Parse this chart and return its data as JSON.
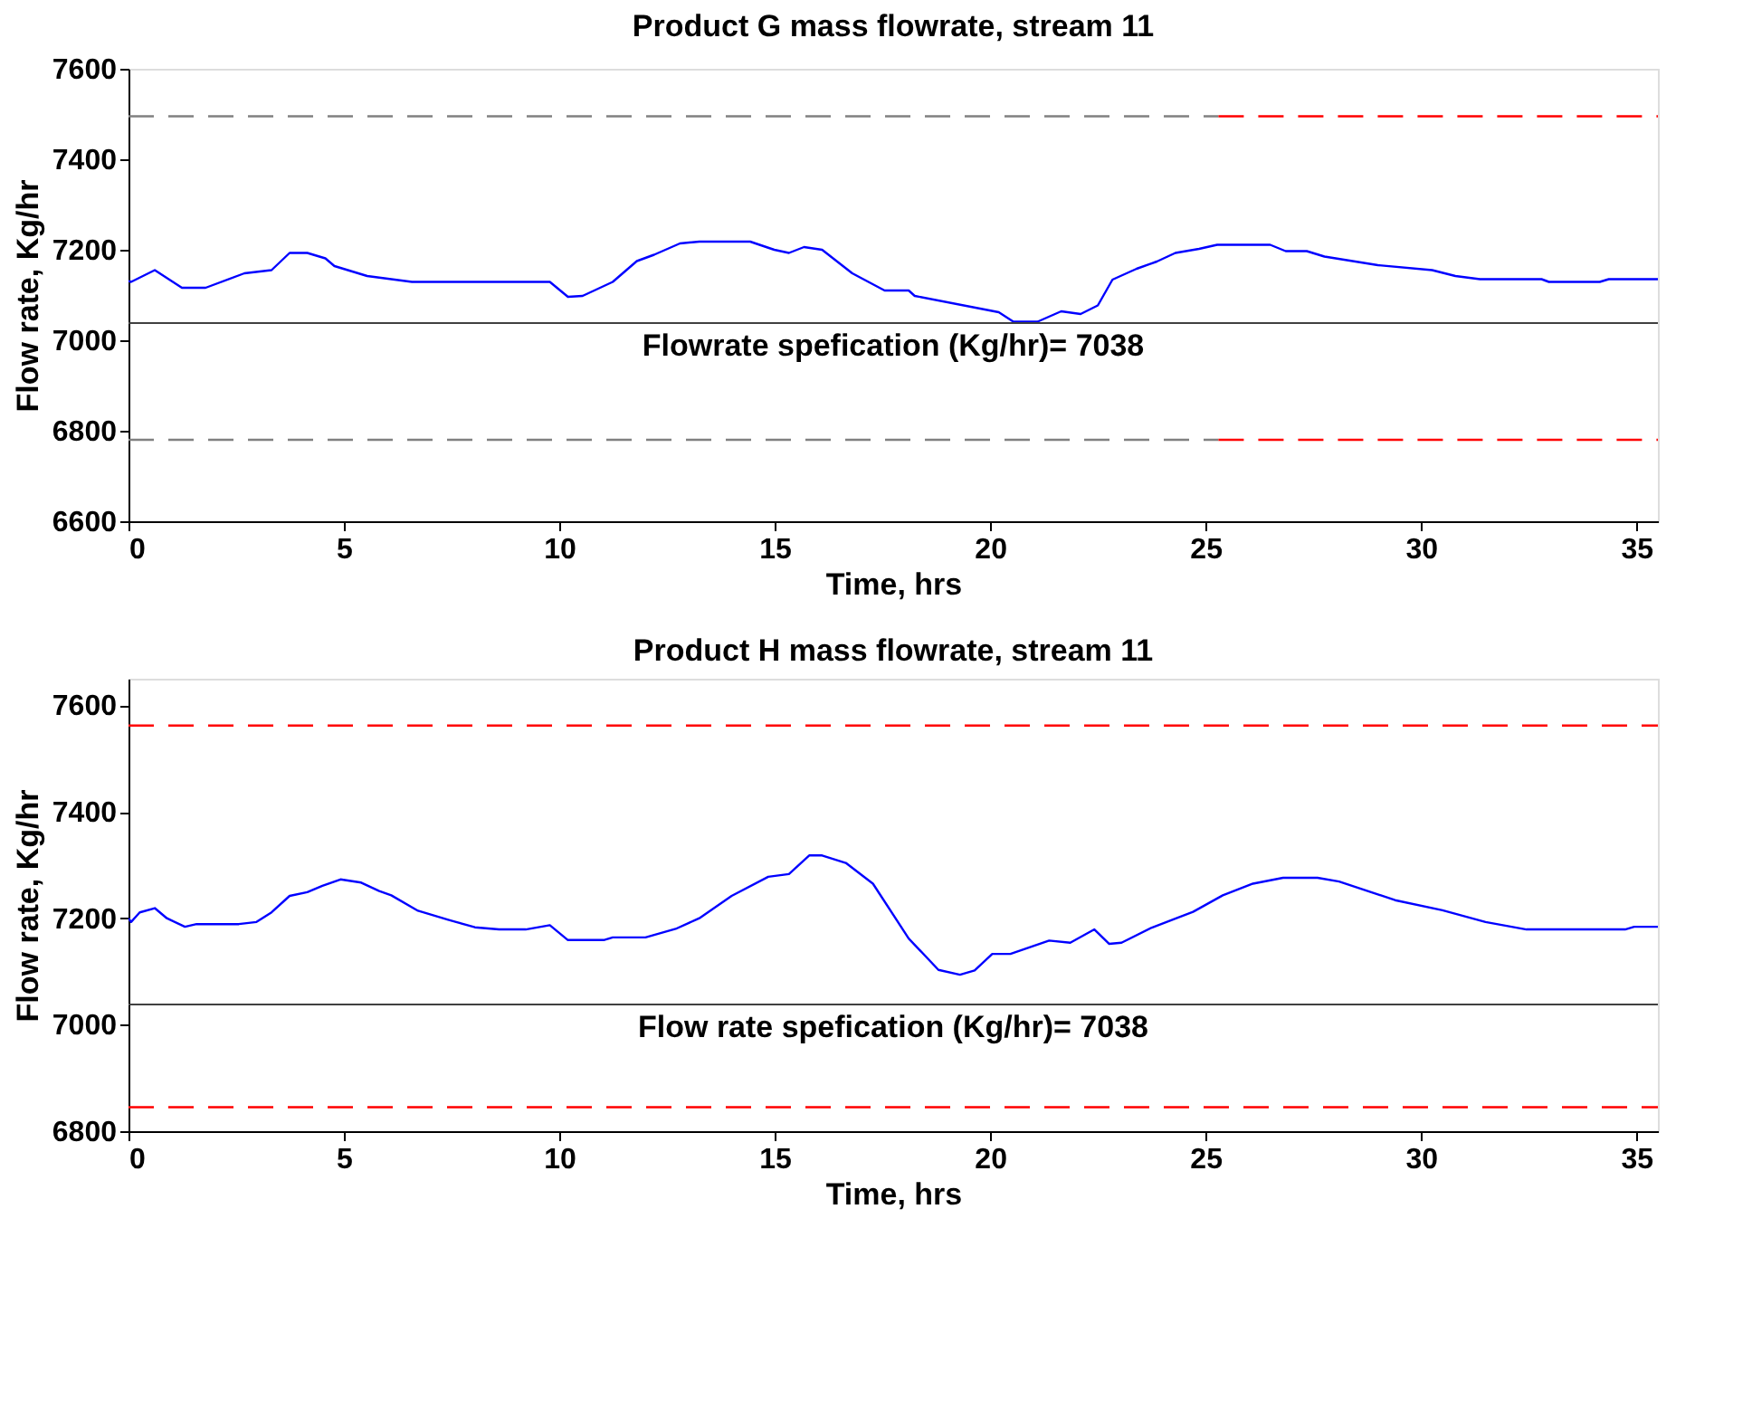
{
  "chart_data": [
    {
      "type": "line",
      "title": "Product G mass flowrate, stream 11",
      "xlabel": "Time, hrs",
      "ylabel": "Flow rate, Kg/hr",
      "xlim": [
        0,
        35.5
      ],
      "xticks": [
        0,
        5,
        10,
        15,
        20,
        25,
        30,
        35
      ],
      "ylim": [
        6600,
        7600
      ],
      "yticks": [
        6600,
        6800,
        7000,
        7200,
        7400,
        7600
      ],
      "grid": false,
      "series": [
        {
          "color": "#0000ff",
          "x": [
            0,
            0.06,
            0.61,
            1.24,
            1.79,
            2.69,
            3.32,
            3.74,
            4.15,
            4.57,
            4.78,
            5.54,
            6.1,
            6.58,
            9.78,
            10.2,
            10.54,
            11.24,
            11.8,
            12.2,
            12.8,
            13.25,
            14.43,
            14.99,
            15.33,
            15.68,
            16.1,
            16.8,
            17.55,
            18.11,
            18.25,
            20.2,
            20.54,
            21.1,
            21.65,
            22.1,
            22.5,
            22.84,
            23.4,
            23.87,
            24.3,
            24.85,
            25.27,
            26.5,
            26.86,
            27.35,
            27.76,
            29.0,
            30.26,
            30.8,
            31.37,
            32.8,
            32.97,
            34.15,
            34.36,
            35.5
          ],
          "values": [
            7131,
            7129,
            7155,
            7116,
            7116,
            7148,
            7155,
            7193,
            7193,
            7181,
            7164,
            7142,
            7135,
            7129,
            7129,
            7096,
            7098,
            7129,
            7175,
            7189,
            7214,
            7218,
            7218,
            7200,
            7193,
            7206,
            7200,
            7148,
            7110,
            7110,
            7098,
            7062,
            7041,
            7041,
            7064,
            7058,
            7077,
            7134,
            7158,
            7174,
            7193,
            7202,
            7211,
            7211,
            7197,
            7197,
            7185,
            7166,
            7155,
            7142,
            7135,
            7135,
            7129,
            7129,
            7135,
            7135
          ]
        },
        {
          "color": "#808080",
          "line_style": "dashed",
          "x": [
            0,
            25.3
          ],
          "values": [
            7495,
            7495
          ]
        },
        {
          "color": "#ff0000",
          "line_style": "dashed",
          "x": [
            25.3,
            35.5
          ],
          "values": [
            7495,
            7495
          ]
        },
        {
          "color": "#808080",
          "line_style": "dashed",
          "x": [
            0,
            25.3
          ],
          "values": [
            6780,
            6780
          ]
        },
        {
          "color": "#ff0000",
          "line_style": "dashed",
          "x": [
            25.3,
            35.5
          ],
          "values": [
            6780,
            6780
          ]
        }
      ],
      "ref_lines": [
        {
          "axis": "y",
          "value": 7038,
          "label": "Flowrate spefication (Kg/hr)= 7038",
          "color": "#404040"
        }
      ]
    },
    {
      "type": "line",
      "title": "Product H mass flowrate, stream 11",
      "xlabel": "Time, hrs",
      "ylabel": "Flow rate, Kg/hr",
      "xlim": [
        0,
        35.5
      ],
      "xticks": [
        0,
        5,
        10,
        15,
        20,
        25,
        30,
        35
      ],
      "ylim": [
        6800,
        7650
      ],
      "yticks": [
        6800,
        7000,
        7200,
        7400,
        7600
      ],
      "grid": false,
      "series": [
        {
          "color": "#0000ff",
          "x": [
            0,
            0.06,
            0.26,
            0.61,
            0.89,
            1.31,
            1.58,
            2.56,
            2.97,
            3.32,
            3.74,
            4.15,
            4.5,
            4.92,
            5.4,
            5.82,
            6.1,
            6.72,
            7.42,
            8.04,
            8.6,
            9.22,
            9.78,
            10.2,
            11.03,
            11.24,
            12.0,
            12.7,
            13.25,
            14.0,
            14.85,
            15.33,
            15.8,
            16.1,
            16.65,
            17.28,
            18.11,
            18.8,
            19.3,
            19.64,
            20.05,
            20.47,
            21.37,
            21.86,
            22.42,
            22.76,
            23.05,
            23.74,
            24.71,
            25.4,
            26.1,
            26.8,
            27.6,
            28.1,
            29.4,
            30.5,
            31.5,
            32.45,
            34.74,
            34.95,
            35.5
          ],
          "values": [
            7200,
            7193,
            7211,
            7219,
            7200,
            7184,
            7189,
            7189,
            7193,
            7211,
            7242,
            7249,
            7261,
            7273,
            7267,
            7251,
            7243,
            7214,
            7197,
            7183,
            7179,
            7179,
            7187,
            7159,
            7159,
            7164,
            7164,
            7180,
            7200,
            7242,
            7278,
            7283,
            7318,
            7318,
            7304,
            7265,
            7162,
            7103,
            7094,
            7102,
            7133,
            7133,
            7158,
            7154,
            7179,
            7152,
            7154,
            7182,
            7212,
            7243,
            7265,
            7276,
            7276,
            7269,
            7234,
            7215,
            7193,
            7179,
            7179,
            7184,
            7184
          ]
        },
        {
          "color": "#ff0000",
          "line_style": "dashed",
          "x": [
            0,
            35.5
          ],
          "values": [
            7562,
            7562
          ]
        },
        {
          "color": "#ff0000",
          "line_style": "dashed",
          "x": [
            0,
            35.5
          ],
          "values": [
            6845,
            6845
          ]
        }
      ],
      "ref_lines": [
        {
          "axis": "y",
          "value": 7038,
          "label": "Flow rate spefication (Kg/hr)= 7038",
          "color": "#404040"
        }
      ]
    }
  ]
}
